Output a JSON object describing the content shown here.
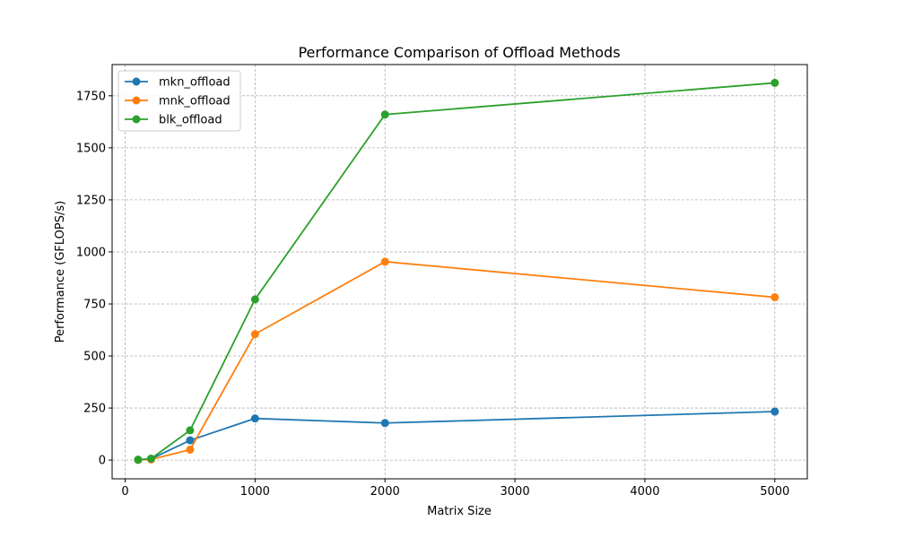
{
  "chart_data": {
    "type": "line",
    "title": "Performance Comparison of Offload Methods",
    "xlabel": "Matrix Size",
    "ylabel": "Performance (GFLOPS/s)",
    "x": [
      100,
      200,
      500,
      1000,
      2000,
      5000
    ],
    "xlim": [
      -100,
      5250
    ],
    "ylim": [
      -90,
      1900
    ],
    "xticks": [
      0,
      1000,
      2000,
      3000,
      4000,
      5000
    ],
    "yticks": [
      0,
      250,
      500,
      750,
      1000,
      1250,
      1500,
      1750
    ],
    "grid": true,
    "legend_position": "top-left",
    "series": [
      {
        "name": "mkn_offload",
        "color": "#1f77b4",
        "values": [
          1,
          6,
          95,
          200,
          178,
          233
        ]
      },
      {
        "name": "mnk_offload",
        "color": "#ff7f0e",
        "values": [
          1,
          3,
          50,
          605,
          953,
          782
        ]
      },
      {
        "name": "blk_offload",
        "color": "#2ca02c",
        "values": [
          2,
          7,
          143,
          772,
          1660,
          1812
        ]
      }
    ]
  }
}
